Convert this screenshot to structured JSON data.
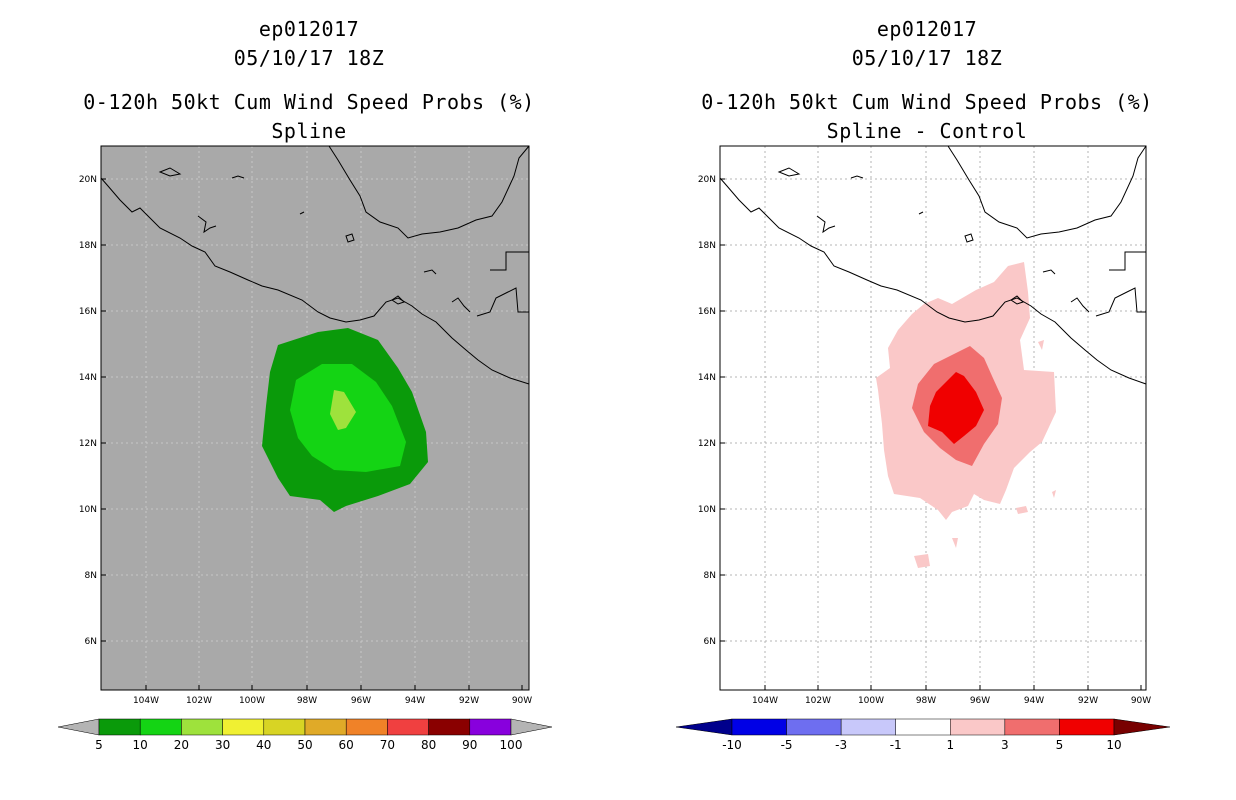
{
  "panels": [
    {
      "storm_id": "ep012017",
      "datetime": "05/10/17 18Z",
      "product": "0-120h 50kt Cum Wind Speed Probs (%)",
      "subtitle": "Spline",
      "background": "#a9a9a9",
      "lat_labels": [
        "20N",
        "18N",
        "16N",
        "14N",
        "12N",
        "10N",
        "8N",
        "6N"
      ],
      "lon_labels": [
        "104W",
        "102W",
        "100W",
        "98W",
        "96W",
        "94W",
        "92W",
        "90W"
      ],
      "colorbar": {
        "labels": [
          "5",
          "10",
          "20",
          "30",
          "40",
          "50",
          "60",
          "70",
          "80",
          "90",
          "100"
        ],
        "colors": [
          "#0a9a0a",
          "#14d414",
          "#9ee23c",
          "#f0f032",
          "#d8d424",
          "#e0aa28",
          "#f08228",
          "#f04040",
          "#8a0000",
          "#8800dd"
        ],
        "end_color": "#b4b4b4"
      },
      "contours": [
        {
          "level": "5",
          "color": "#0a9a0a"
        },
        {
          "level": "10",
          "color": "#14d414"
        },
        {
          "level": "20",
          "color": "#9ee23c"
        }
      ]
    },
    {
      "storm_id": "ep012017",
      "datetime": "05/10/17 18Z",
      "product": "0-120h 50kt Cum Wind Speed Probs (%)",
      "subtitle": "Spline - Control",
      "background": "#ffffff",
      "lat_labels": [
        "20N",
        "18N",
        "16N",
        "14N",
        "12N",
        "10N",
        "8N",
        "6N"
      ],
      "lon_labels": [
        "104W",
        "102W",
        "100W",
        "98W",
        "96W",
        "94W",
        "92W",
        "90W"
      ],
      "colorbar": {
        "labels": [
          "-10",
          "-5",
          "-3",
          "-1",
          "1",
          "3",
          "5",
          "10"
        ],
        "colors": [
          "#0000e6",
          "#6e6ef0",
          "#c8c8fa",
          "#ffffff",
          "#fac8c8",
          "#f06e6e",
          "#f00000"
        ],
        "left_end_color": "#00008c",
        "right_end_color": "#780000"
      },
      "contours": [
        {
          "level": "1",
          "color": "#fac8c8"
        },
        {
          "level": "3",
          "color": "#f06e6e"
        },
        {
          "level": "5",
          "color": "#f00000"
        }
      ]
    }
  ]
}
